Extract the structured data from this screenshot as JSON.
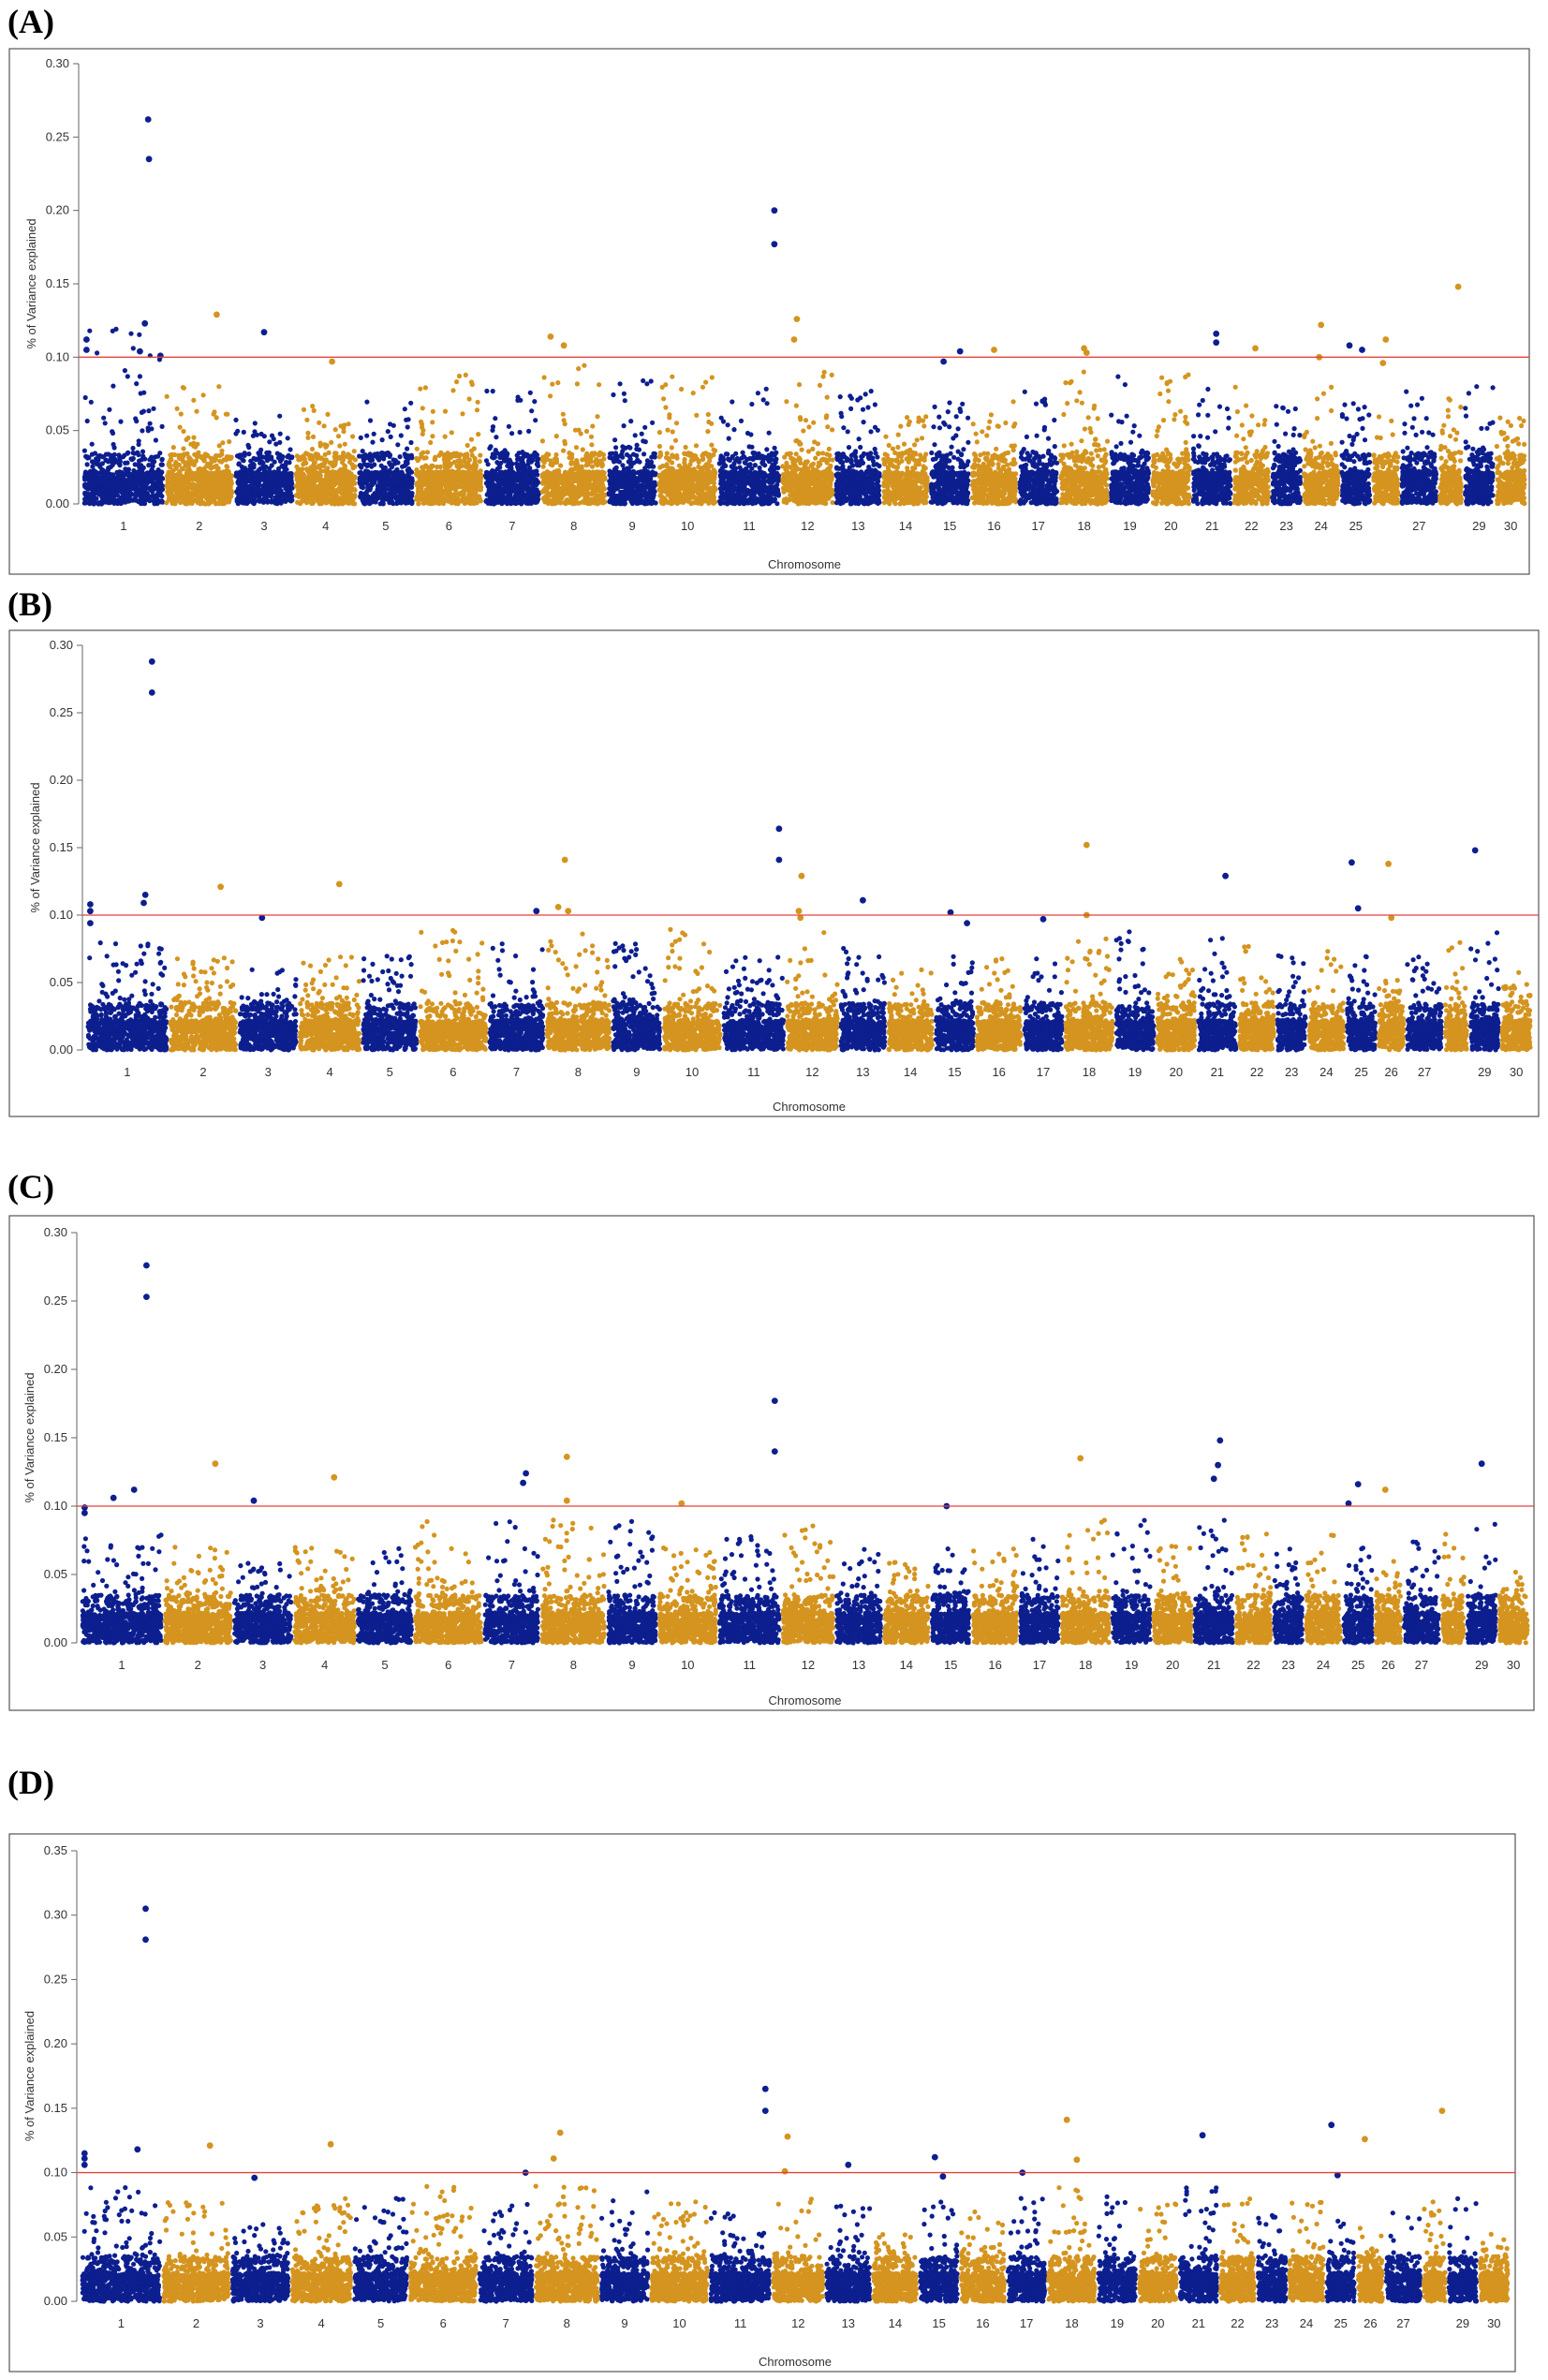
{
  "figure": {
    "panel_letters": [
      "(A)",
      "(B)",
      "(C)",
      "(D)"
    ]
  },
  "colors": {
    "odd_chromosome": "#0d1f8f",
    "even_chromosome": "#d4941f",
    "threshold": "#e8413b",
    "frame": "#555555"
  },
  "chart_data": [
    {
      "type": "scatter",
      "panel": "(A)",
      "xlabel": "Chromosome",
      "ylabel": "% of Variance explained",
      "ylim": [
        0,
        0.3
      ],
      "yticks": [
        "0.00",
        "0.05",
        "0.10",
        "0.15",
        "0.20",
        "0.25",
        "0.30"
      ],
      "threshold": 0.1,
      "chromosomes": [
        "1",
        "2",
        "3",
        "4",
        "5",
        "6",
        "7",
        "8",
        "9",
        "10",
        "11",
        "12",
        "13",
        "14",
        "15",
        "16",
        "17",
        "18",
        "19",
        "20",
        "21",
        "22",
        "23",
        "24",
        "25",
        "",
        "27",
        "",
        "29",
        "30"
      ],
      "chromosome_widths": [
        2.6,
        2.2,
        1.9,
        2.0,
        1.8,
        2.2,
        1.8,
        2.1,
        1.6,
        1.9,
        2.0,
        1.7,
        1.5,
        1.5,
        1.3,
        1.5,
        1.3,
        1.6,
        1.3,
        1.3,
        1.3,
        1.2,
        1.0,
        1.2,
        1.0,
        0.9,
        1.2,
        0.8,
        1.0,
        1.0
      ],
      "chromosome_max": [
        0.12,
        0.08,
        0.06,
        0.07,
        0.07,
        0.09,
        0.08,
        0.1,
        0.09,
        0.09,
        0.08,
        0.09,
        0.08,
        0.06,
        0.07,
        0.07,
        0.08,
        0.09,
        0.09,
        0.09,
        0.09,
        0.08,
        0.07,
        0.08,
        0.07,
        0.06,
        0.08,
        0.08,
        0.08,
        0.06
      ],
      "top_hits": [
        {
          "chr": "1",
          "pos": 0.8,
          "value": 0.262
        },
        {
          "chr": "1",
          "pos": 0.81,
          "value": 0.235
        },
        {
          "chr": "1",
          "pos": 0.76,
          "value": 0.123
        },
        {
          "chr": "1",
          "pos": 0.7,
          "value": 0.104
        },
        {
          "chr": "1",
          "pos": 0.05,
          "value": 0.112
        },
        {
          "chr": "1",
          "pos": 0.05,
          "value": 0.105
        },
        {
          "chr": "1",
          "pos": 0.95,
          "value": 0.101
        },
        {
          "chr": "2",
          "pos": 0.75,
          "value": 0.129
        },
        {
          "chr": "3",
          "pos": 0.5,
          "value": 0.117
        },
        {
          "chr": "4",
          "pos": 0.6,
          "value": 0.097
        },
        {
          "chr": "8",
          "pos": 0.15,
          "value": 0.114
        },
        {
          "chr": "8",
          "pos": 0.35,
          "value": 0.108
        },
        {
          "chr": "11",
          "pos": 0.9,
          "value": 0.2
        },
        {
          "chr": "11",
          "pos": 0.9,
          "value": 0.177
        },
        {
          "chr": "12",
          "pos": 0.3,
          "value": 0.126
        },
        {
          "chr": "12",
          "pos": 0.25,
          "value": 0.112
        },
        {
          "chr": "15",
          "pos": 0.35,
          "value": 0.097
        },
        {
          "chr": "15",
          "pos": 0.75,
          "value": 0.104
        },
        {
          "chr": "16",
          "pos": 0.5,
          "value": 0.105
        },
        {
          "chr": "18",
          "pos": 0.5,
          "value": 0.106
        },
        {
          "chr": "18",
          "pos": 0.55,
          "value": 0.103
        },
        {
          "chr": "21",
          "pos": 0.6,
          "value": 0.116
        },
        {
          "chr": "21",
          "pos": 0.6,
          "value": 0.11
        },
        {
          "chr": "22",
          "pos": 0.6,
          "value": 0.106
        },
        {
          "chr": "24",
          "pos": 0.5,
          "value": 0.122
        },
        {
          "chr": "24",
          "pos": 0.45,
          "value": 0.1
        },
        {
          "chr": "25",
          "pos": 0.3,
          "value": 0.108
        },
        {
          "chr": "25",
          "pos": 0.7,
          "value": 0.105
        },
        {
          "chr": "26",
          "pos": 0.5,
          "value": 0.112
        },
        {
          "chr": "26",
          "pos": 0.4,
          "value": 0.096
        },
        {
          "chr": "28",
          "pos": 0.8,
          "value": 0.148
        }
      ]
    },
    {
      "type": "scatter",
      "panel": "(B)",
      "xlabel": "Chromosome",
      "ylabel": "% of Variance explained",
      "ylim": [
        0,
        0.3
      ],
      "yticks": [
        "0.00",
        "0.05",
        "0.10",
        "0.15",
        "0.20",
        "0.25",
        "0.30"
      ],
      "threshold": 0.1,
      "chromosomes": [
        "1",
        "2",
        "3",
        "4",
        "5",
        "6",
        "7",
        "8",
        "9",
        "10",
        "11",
        "12",
        "13",
        "14",
        "15",
        "16",
        "17",
        "18",
        "19",
        "20",
        "21",
        "22",
        "23",
        "24",
        "25",
        "26",
        "27",
        "",
        "29",
        "30"
      ],
      "chromosome_widths": [
        2.6,
        2.2,
        1.9,
        2.0,
        1.8,
        2.2,
        1.8,
        2.1,
        1.6,
        1.9,
        2.0,
        1.7,
        1.5,
        1.5,
        1.3,
        1.5,
        1.3,
        1.6,
        1.3,
        1.3,
        1.3,
        1.2,
        1.0,
        1.2,
        1.0,
        0.9,
        1.2,
        0.8,
        1.0,
        1.0
      ],
      "chromosome_max": [
        0.08,
        0.07,
        0.06,
        0.07,
        0.07,
        0.09,
        0.08,
        0.09,
        0.08,
        0.09,
        0.07,
        0.09,
        0.08,
        0.06,
        0.07,
        0.07,
        0.07,
        0.09,
        0.09,
        0.07,
        0.09,
        0.08,
        0.07,
        0.08,
        0.07,
        0.06,
        0.07,
        0.08,
        0.09,
        0.06
      ],
      "top_hits": [
        {
          "chr": "1",
          "pos": 0.8,
          "value": 0.288
        },
        {
          "chr": "1",
          "pos": 0.8,
          "value": 0.265
        },
        {
          "chr": "1",
          "pos": 0.72,
          "value": 0.115
        },
        {
          "chr": "1",
          "pos": 0.7,
          "value": 0.109
        },
        {
          "chr": "1",
          "pos": 0.05,
          "value": 0.108
        },
        {
          "chr": "1",
          "pos": 0.05,
          "value": 0.103
        },
        {
          "chr": "1",
          "pos": 0.05,
          "value": 0.094
        },
        {
          "chr": "2",
          "pos": 0.75,
          "value": 0.121
        },
        {
          "chr": "3",
          "pos": 0.4,
          "value": 0.098
        },
        {
          "chr": "4",
          "pos": 0.65,
          "value": 0.123
        },
        {
          "chr": "7",
          "pos": 0.85,
          "value": 0.103
        },
        {
          "chr": "8",
          "pos": 0.3,
          "value": 0.141
        },
        {
          "chr": "8",
          "pos": 0.2,
          "value": 0.106
        },
        {
          "chr": "8",
          "pos": 0.35,
          "value": 0.103
        },
        {
          "chr": "11",
          "pos": 0.9,
          "value": 0.164
        },
        {
          "chr": "11",
          "pos": 0.9,
          "value": 0.141
        },
        {
          "chr": "12",
          "pos": 0.3,
          "value": 0.129
        },
        {
          "chr": "12",
          "pos": 0.25,
          "value": 0.103
        },
        {
          "chr": "12",
          "pos": 0.28,
          "value": 0.098
        },
        {
          "chr": "13",
          "pos": 0.5,
          "value": 0.111
        },
        {
          "chr": "15",
          "pos": 0.4,
          "value": 0.102
        },
        {
          "chr": "15",
          "pos": 0.8,
          "value": 0.094
        },
        {
          "chr": "17",
          "pos": 0.5,
          "value": 0.097
        },
        {
          "chr": "18",
          "pos": 0.45,
          "value": 0.152
        },
        {
          "chr": "18",
          "pos": 0.45,
          "value": 0.1
        },
        {
          "chr": "21",
          "pos": 0.7,
          "value": 0.129
        },
        {
          "chr": "25",
          "pos": 0.2,
          "value": 0.139
        },
        {
          "chr": "25",
          "pos": 0.4,
          "value": 0.105
        },
        {
          "chr": "26",
          "pos": 0.4,
          "value": 0.138
        },
        {
          "chr": "26",
          "pos": 0.5,
          "value": 0.098
        },
        {
          "chr": "29",
          "pos": 0.2,
          "value": 0.148
        }
      ]
    },
    {
      "type": "scatter",
      "panel": "(C)",
      "xlabel": "Chromosome",
      "ylabel": "% of Variance explained",
      "ylim": [
        0,
        0.3
      ],
      "yticks": [
        "0.00",
        "0.05",
        "0.10",
        "0.15",
        "0.20",
        "0.25",
        "0.30"
      ],
      "threshold": 0.1,
      "chromosomes": [
        "1",
        "2",
        "3",
        "4",
        "5",
        "6",
        "7",
        "8",
        "9",
        "10",
        "11",
        "12",
        "13",
        "14",
        "15",
        "16",
        "17",
        "18",
        "19",
        "20",
        "21",
        "22",
        "23",
        "24",
        "25",
        "26",
        "27",
        "",
        "29",
        "30"
      ],
      "chromosome_widths": [
        2.6,
        2.2,
        1.9,
        2.0,
        1.8,
        2.2,
        1.8,
        2.1,
        1.6,
        1.9,
        2.0,
        1.7,
        1.5,
        1.5,
        1.3,
        1.5,
        1.3,
        1.6,
        1.3,
        1.3,
        1.3,
        1.2,
        1.0,
        1.2,
        1.0,
        0.9,
        1.2,
        0.8,
        1.0,
        1.0
      ],
      "chromosome_max": [
        0.08,
        0.07,
        0.06,
        0.07,
        0.07,
        0.09,
        0.09,
        0.09,
        0.09,
        0.07,
        0.08,
        0.09,
        0.07,
        0.06,
        0.07,
        0.07,
        0.08,
        0.09,
        0.09,
        0.08,
        0.09,
        0.08,
        0.07,
        0.08,
        0.07,
        0.06,
        0.08,
        0.08,
        0.09,
        0.06
      ],
      "top_hits": [
        {
          "chr": "1",
          "pos": 0.8,
          "value": 0.276
        },
        {
          "chr": "1",
          "pos": 0.8,
          "value": 0.253
        },
        {
          "chr": "1",
          "pos": 0.65,
          "value": 0.112
        },
        {
          "chr": "1",
          "pos": 0.4,
          "value": 0.106
        },
        {
          "chr": "1",
          "pos": 0.05,
          "value": 0.099
        },
        {
          "chr": "1",
          "pos": 0.05,
          "value": 0.095
        },
        {
          "chr": "2",
          "pos": 0.75,
          "value": 0.131
        },
        {
          "chr": "3",
          "pos": 0.35,
          "value": 0.104
        },
        {
          "chr": "4",
          "pos": 0.65,
          "value": 0.121
        },
        {
          "chr": "7",
          "pos": 0.75,
          "value": 0.124
        },
        {
          "chr": "7",
          "pos": 0.7,
          "value": 0.117
        },
        {
          "chr": "8",
          "pos": 0.4,
          "value": 0.136
        },
        {
          "chr": "8",
          "pos": 0.4,
          "value": 0.104
        },
        {
          "chr": "10",
          "pos": 0.4,
          "value": 0.102
        },
        {
          "chr": "11",
          "pos": 0.9,
          "value": 0.177
        },
        {
          "chr": "11",
          "pos": 0.9,
          "value": 0.14
        },
        {
          "chr": "15",
          "pos": 0.4,
          "value": 0.1
        },
        {
          "chr": "18",
          "pos": 0.4,
          "value": 0.135
        },
        {
          "chr": "21",
          "pos": 0.65,
          "value": 0.148
        },
        {
          "chr": "21",
          "pos": 0.6,
          "value": 0.13
        },
        {
          "chr": "21",
          "pos": 0.5,
          "value": 0.12
        },
        {
          "chr": "25",
          "pos": 0.2,
          "value": 0.102
        },
        {
          "chr": "25",
          "pos": 0.5,
          "value": 0.116
        },
        {
          "chr": "26",
          "pos": 0.4,
          "value": 0.112
        },
        {
          "chr": "29",
          "pos": 0.5,
          "value": 0.131
        }
      ]
    },
    {
      "type": "scatter",
      "panel": "(D)",
      "xlabel": "Chromosome",
      "ylabel": "% of Variance explained",
      "ylim": [
        0,
        0.35
      ],
      "yticks": [
        "0.00",
        "0.05",
        "0.10",
        "0.15",
        "0.20",
        "0.25",
        "0.30",
        "0.35"
      ],
      "threshold": 0.1,
      "chromosomes": [
        "1",
        "2",
        "3",
        "4",
        "5",
        "6",
        "7",
        "8",
        "9",
        "10",
        "11",
        "12",
        "13",
        "14",
        "15",
        "16",
        "17",
        "18",
        "19",
        "20",
        "21",
        "22",
        "23",
        "24",
        "25",
        "26",
        "27",
        "",
        "29",
        "30"
      ],
      "chromosome_widths": [
        2.6,
        2.2,
        1.9,
        2.0,
        1.8,
        2.2,
        1.8,
        2.1,
        1.6,
        1.9,
        2.0,
        1.7,
        1.5,
        1.5,
        1.3,
        1.5,
        1.3,
        1.6,
        1.3,
        1.3,
        1.3,
        1.2,
        1.0,
        1.2,
        1.0,
        0.9,
        1.2,
        0.8,
        1.0,
        1.0
      ],
      "chromosome_max": [
        0.09,
        0.08,
        0.06,
        0.08,
        0.08,
        0.09,
        0.08,
        0.09,
        0.09,
        0.08,
        0.07,
        0.08,
        0.08,
        0.06,
        0.08,
        0.07,
        0.08,
        0.09,
        0.09,
        0.08,
        0.09,
        0.08,
        0.07,
        0.08,
        0.07,
        0.06,
        0.08,
        0.08,
        0.09,
        0.06
      ],
      "top_hits": [
        {
          "chr": "1",
          "pos": 0.8,
          "value": 0.305
        },
        {
          "chr": "1",
          "pos": 0.8,
          "value": 0.281
        },
        {
          "chr": "1",
          "pos": 0.7,
          "value": 0.118
        },
        {
          "chr": "1",
          "pos": 0.05,
          "value": 0.115
        },
        {
          "chr": "1",
          "pos": 0.05,
          "value": 0.111
        },
        {
          "chr": "1",
          "pos": 0.05,
          "value": 0.106
        },
        {
          "chr": "2",
          "pos": 0.7,
          "value": 0.121
        },
        {
          "chr": "3",
          "pos": 0.4,
          "value": 0.096
        },
        {
          "chr": "4",
          "pos": 0.65,
          "value": 0.122
        },
        {
          "chr": "7",
          "pos": 0.85,
          "value": 0.1
        },
        {
          "chr": "8",
          "pos": 0.4,
          "value": 0.131
        },
        {
          "chr": "8",
          "pos": 0.3,
          "value": 0.111
        },
        {
          "chr": "11",
          "pos": 0.9,
          "value": 0.165
        },
        {
          "chr": "11",
          "pos": 0.9,
          "value": 0.148
        },
        {
          "chr": "12",
          "pos": 0.3,
          "value": 0.128
        },
        {
          "chr": "12",
          "pos": 0.25,
          "value": 0.101
        },
        {
          "chr": "13",
          "pos": 0.5,
          "value": 0.106
        },
        {
          "chr": "15",
          "pos": 0.4,
          "value": 0.112
        },
        {
          "chr": "15",
          "pos": 0.6,
          "value": 0.097
        },
        {
          "chr": "17",
          "pos": 0.4,
          "value": 0.1
        },
        {
          "chr": "18",
          "pos": 0.4,
          "value": 0.141
        },
        {
          "chr": "18",
          "pos": 0.6,
          "value": 0.11
        },
        {
          "chr": "21",
          "pos": 0.6,
          "value": 0.129
        },
        {
          "chr": "25",
          "pos": 0.2,
          "value": 0.137
        },
        {
          "chr": "25",
          "pos": 0.4,
          "value": 0.098
        },
        {
          "chr": "26",
          "pos": 0.3,
          "value": 0.126
        },
        {
          "chr": "28",
          "pos": 0.8,
          "value": 0.148
        }
      ]
    }
  ]
}
